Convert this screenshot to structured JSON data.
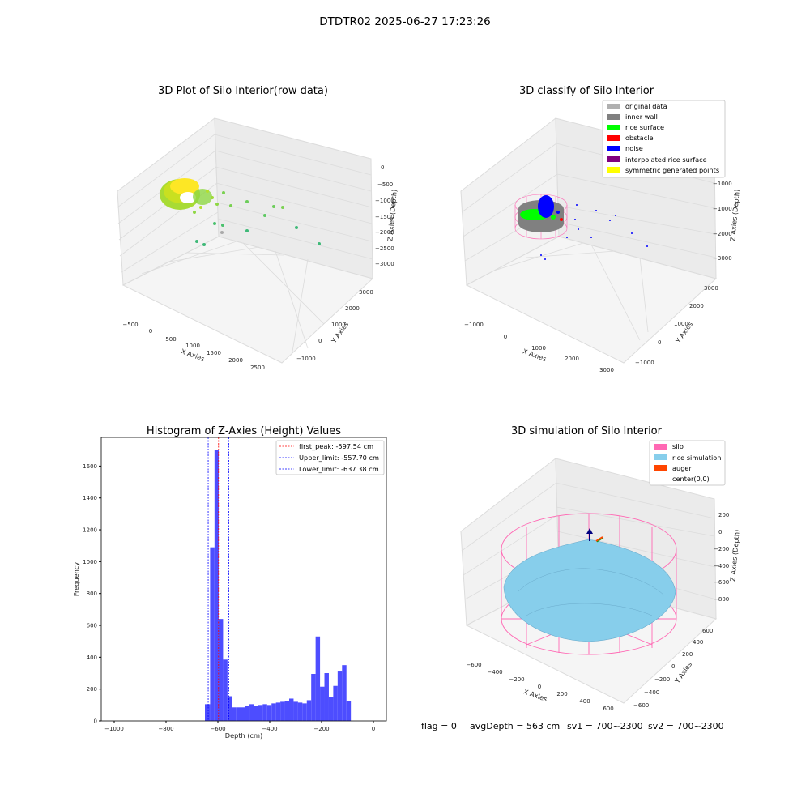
{
  "suptitle": "DTDTR02 2025-06-27 17:23:26",
  "footer": {
    "flag": "flag = 0",
    "avg_depth": "avgDepth = 563 cm",
    "sv1": "sv1 = 700~2300",
    "sv2": "sv2 = 700~2300"
  },
  "chart_data": [
    {
      "type": "scatter",
      "title": "3D Plot of Silo Interior(row data)",
      "xlabel": "X Axies",
      "ylabel": "Y Axies",
      "zlabel": "Z Axies (Depth)",
      "xticks": [
        "−500",
        "0",
        "500",
        "1000",
        "1500",
        "2000",
        "2500"
      ],
      "yticks": [
        "−1000",
        "0",
        "1000",
        "2000",
        "3000"
      ],
      "zticks": [
        "0",
        "−500",
        "−1000",
        "−1500",
        "−2000",
        "−2500",
        "−3000"
      ],
      "grid": true,
      "colormap": [
        "#3fb978",
        "#7ad151",
        "#b5de2b",
        "#fde725"
      ]
    },
    {
      "type": "scatter",
      "title": "3D classify of Silo Interior",
      "xlabel": "X Axies",
      "ylabel": "Y Axies",
      "zlabel": "Z Axies (Depth)",
      "xticks": [
        "−1000",
        "0",
        "1000",
        "2000",
        "3000"
      ],
      "yticks": [
        "−1000",
        "0",
        "1000",
        "2000",
        "3000"
      ],
      "zticks": [
        "−1000",
        "−2000",
        "−3000"
      ],
      "grid": true,
      "legend_position": "top-right",
      "legend": [
        {
          "label": "original data",
          "color": "#b0b0b0"
        },
        {
          "label": "inner wall",
          "color": "#808080"
        },
        {
          "label": "rice surface",
          "color": "#00ff00"
        },
        {
          "label": "obstacle",
          "color": "#ff0000"
        },
        {
          "label": "noise",
          "color": "#0000ff"
        },
        {
          "label": "interpolated rice surface",
          "color": "#800080"
        },
        {
          "label": "symmetric generated points",
          "color": "#ffff00"
        }
      ]
    },
    {
      "type": "bar",
      "title": "Histogram of Z-Axies (Height) Values",
      "xlabel": "Depth (cm)",
      "ylabel": "Frequency",
      "xlim": [
        -1050,
        50
      ],
      "ylim": [
        0,
        1780
      ],
      "xticks": [
        -1000,
        -800,
        -600,
        -400,
        -200,
        0
      ],
      "yticks": [
        0,
        200,
        400,
        600,
        800,
        1000,
        1200,
        1400,
        1600
      ],
      "bar_color": "#4d4dff",
      "bins": [
        {
          "x0": -650,
          "x1": -630,
          "count": 105
        },
        {
          "x0": -630,
          "x1": -613,
          "count": 1090
        },
        {
          "x0": -613,
          "x1": -597,
          "count": 1700
        },
        {
          "x0": -597,
          "x1": -580,
          "count": 640
        },
        {
          "x0": -580,
          "x1": -563,
          "count": 385
        },
        {
          "x0": -563,
          "x1": -546,
          "count": 155
        },
        {
          "x0": -546,
          "x1": -529,
          "count": 85
        },
        {
          "x0": -529,
          "x1": -512,
          "count": 85
        },
        {
          "x0": -512,
          "x1": -495,
          "count": 85
        },
        {
          "x0": -495,
          "x1": -478,
          "count": 95
        },
        {
          "x0": -478,
          "x1": -461,
          "count": 105
        },
        {
          "x0": -461,
          "x1": -444,
          "count": 95
        },
        {
          "x0": -444,
          "x1": -427,
          "count": 100
        },
        {
          "x0": -427,
          "x1": -410,
          "count": 105
        },
        {
          "x0": -410,
          "x1": -393,
          "count": 100
        },
        {
          "x0": -393,
          "x1": -376,
          "count": 110
        },
        {
          "x0": -376,
          "x1": -359,
          "count": 115
        },
        {
          "x0": -359,
          "x1": -342,
          "count": 120
        },
        {
          "x0": -342,
          "x1": -325,
          "count": 125
        },
        {
          "x0": -325,
          "x1": -308,
          "count": 140
        },
        {
          "x0": -308,
          "x1": -291,
          "count": 120
        },
        {
          "x0": -291,
          "x1": -274,
          "count": 115
        },
        {
          "x0": -274,
          "x1": -257,
          "count": 110
        },
        {
          "x0": -257,
          "x1": -240,
          "count": 130
        },
        {
          "x0": -240,
          "x1": -223,
          "count": 295
        },
        {
          "x0": -223,
          "x1": -206,
          "count": 530
        },
        {
          "x0": -206,
          "x1": -189,
          "count": 215
        },
        {
          "x0": -189,
          "x1": -172,
          "count": 300
        },
        {
          "x0": -172,
          "x1": -155,
          "count": 150
        },
        {
          "x0": -155,
          "x1": -138,
          "count": 220
        },
        {
          "x0": -138,
          "x1": -121,
          "count": 310
        },
        {
          "x0": -121,
          "x1": -104,
          "count": 350
        },
        {
          "x0": -104,
          "x1": -87,
          "count": 125
        }
      ],
      "vlines": [
        {
          "label": "first_peak: -597.54 cm",
          "x": -597.54,
          "color": "#ff0000"
        },
        {
          "label": "Upper_limit: -557.70 cm",
          "x": -557.7,
          "color": "#0000ff"
        },
        {
          "label": "Lower_limit: -637.38 cm",
          "x": -637.38,
          "color": "#0000ff"
        }
      ],
      "legend_position": "top-right"
    },
    {
      "type": "surface",
      "title": "3D simulation of Silo Interior",
      "xlabel": "X Axies",
      "ylabel": "Y Axies",
      "zlabel": "Z Axies (Depth)",
      "xticks": [
        "−600",
        "−400",
        "−200",
        "0",
        "200",
        "400",
        "600"
      ],
      "yticks": [
        "−600",
        "−400",
        "−200",
        "0",
        "200",
        "400",
        "600"
      ],
      "zticks": [
        "200",
        "0",
        "−200",
        "−400",
        "−600",
        "−800"
      ],
      "grid": true,
      "legend_position": "top-right",
      "legend": [
        {
          "label": "silo",
          "color": "#ff69b4"
        },
        {
          "label": "rice simulation",
          "color": "#87ceeb"
        },
        {
          "label": "auger",
          "color": "#ff4500"
        },
        {
          "label": "center(0,0)",
          "color": "none"
        }
      ]
    }
  ]
}
